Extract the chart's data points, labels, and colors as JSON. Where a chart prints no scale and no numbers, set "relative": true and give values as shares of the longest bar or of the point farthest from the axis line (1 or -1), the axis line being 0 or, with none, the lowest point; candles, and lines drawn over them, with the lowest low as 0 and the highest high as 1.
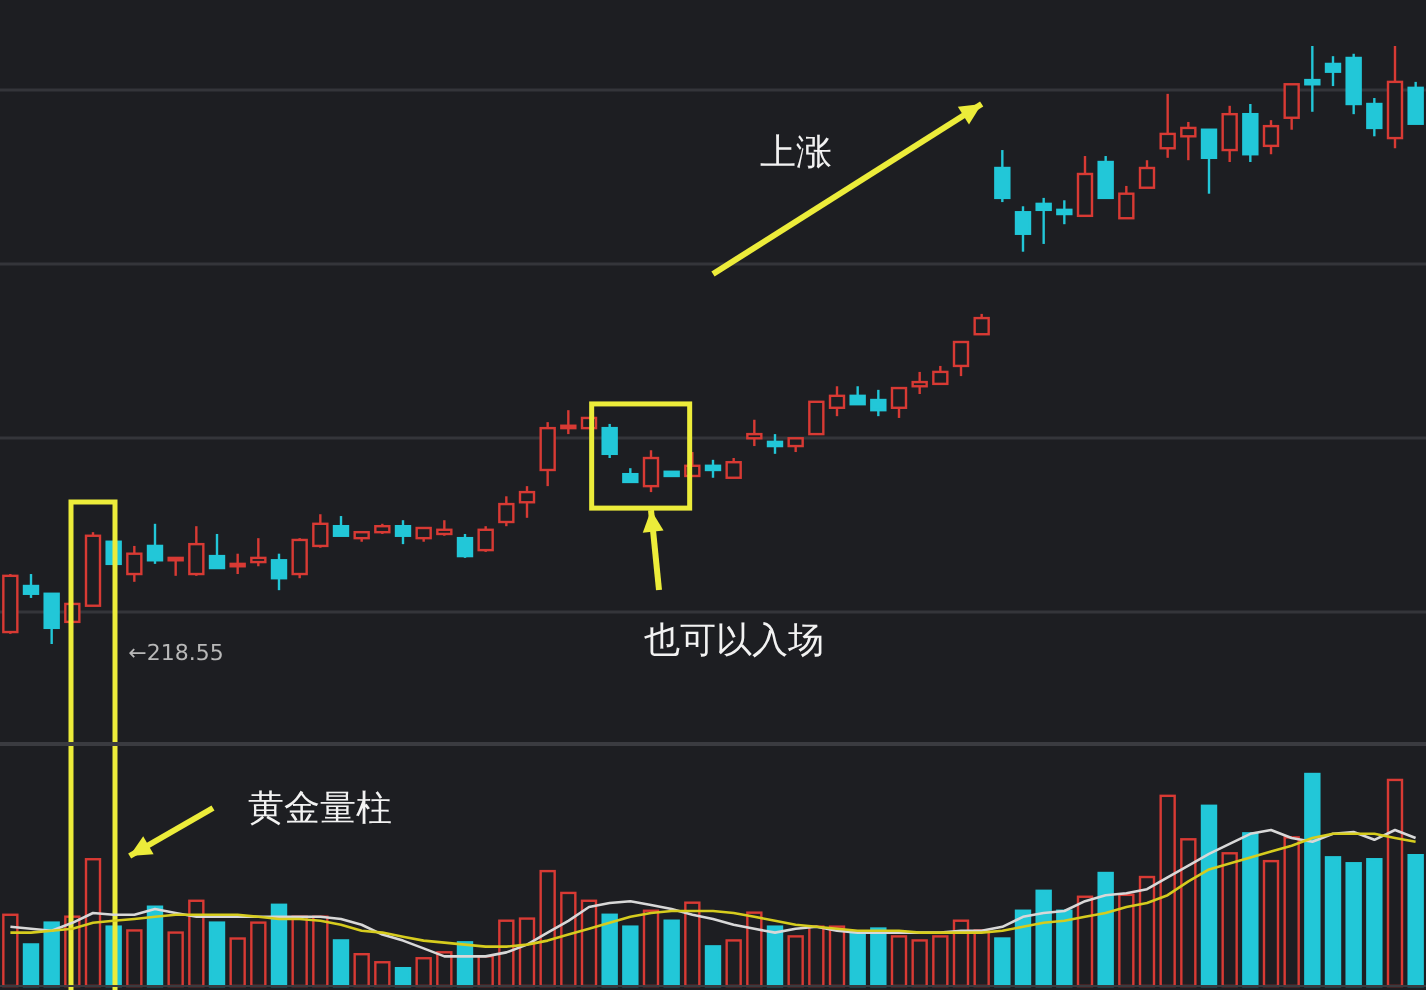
{
  "chart_data": [
    {
      "type": "candlestick",
      "relative": true,
      "grid": true,
      "categories": [
        null,
        null,
        null,
        null,
        null,
        null,
        null,
        null,
        null,
        null,
        null,
        null,
        null,
        null,
        null,
        null,
        null,
        null,
        null,
        null,
        null,
        null,
        null,
        null,
        null,
        null,
        null,
        null,
        null,
        null,
        null,
        null,
        null,
        null,
        null,
        null,
        null,
        null,
        null,
        null,
        null,
        null,
        null,
        null,
        null,
        null,
        null,
        null,
        null,
        null,
        null,
        null,
        null,
        null,
        null,
        null,
        null,
        null,
        null,
        null,
        null,
        null,
        null,
        null,
        null,
        null,
        null,
        null,
        null
      ],
      "ohlc": [
        [
          0.02,
          0.117,
          0.017,
          0.114
        ],
        [
          0.097,
          0.117,
          0.077,
          0.084
        ],
        [
          0.084,
          0.084,
          0,
          0.027
        ],
        [
          0.037,
          0.067,
          0.037,
          0.067
        ],
        [
          0.064,
          0.187,
          0.064,
          0.181
        ],
        [
          0.171,
          0.171,
          0.134,
          0.134
        ],
        [
          0.117,
          0.164,
          0.104,
          0.151
        ],
        [
          0.164,
          0.201,
          0.134,
          0.14
        ],
        [
          0.14,
          0.144,
          0.114,
          0.144
        ],
        [
          0.117,
          0.197,
          0.114,
          0.167
        ],
        [
          0.147,
          0.184,
          0.127,
          0.127
        ],
        [
          0.13,
          0.151,
          0.117,
          0.134
        ],
        [
          0.137,
          0.177,
          0.13,
          0.144
        ],
        [
          0.14,
          0.151,
          0.09,
          0.11
        ],
        [
          0.117,
          0.177,
          0.11,
          0.174
        ],
        [
          0.164,
          0.217,
          0.161,
          0.201
        ],
        [
          0.197,
          0.214,
          0.181,
          0.181
        ],
        [
          0.177,
          0.187,
          0.171,
          0.187
        ],
        [
          0.187,
          0.201,
          0.184,
          0.197
        ],
        [
          0.197,
          0.207,
          0.167,
          0.181
        ],
        [
          0.177,
          0.194,
          0.171,
          0.194
        ],
        [
          0.184,
          0.207,
          0.181,
          0.191
        ],
        [
          0.177,
          0.184,
          0.144,
          0.147
        ],
        [
          0.157,
          0.197,
          0.154,
          0.191
        ],
        [
          0.204,
          0.247,
          0.197,
          0.234
        ],
        [
          0.237,
          0.264,
          0.211,
          0.254
        ],
        [
          0.291,
          0.371,
          0.264,
          0.361
        ],
        [
          0.361,
          0.391,
          0.351,
          0.365
        ],
        [
          0.361,
          0.378,
          0.361,
          0.378
        ],
        [
          0.361,
          0.368,
          0.311,
          0.318
        ],
        [
          0.284,
          0.294,
          0.271,
          0.271
        ],
        [
          0.264,
          0.324,
          0.254,
          0.311
        ],
        [
          0.288,
          0.288,
          0.281,
          0.281
        ],
        [
          0.281,
          0.321,
          0.281,
          0.298
        ],
        [
          0.298,
          0.308,
          0.278,
          0.291
        ],
        [
          0.278,
          0.311,
          0.278,
          0.304
        ],
        [
          0.344,
          0.375,
          0.331,
          0.351
        ],
        [
          0.338,
          0.351,
          0.318,
          0.331
        ],
        [
          0.331,
          0.344,
          0.321,
          0.344
        ],
        [
          0.351,
          0.405,
          0.351,
          0.405
        ],
        [
          0.395,
          0.431,
          0.381,
          0.415
        ],
        [
          0.415,
          0.431,
          0.401,
          0.401
        ],
        [
          0.408,
          0.425,
          0.381,
          0.391
        ],
        [
          0.395,
          0.428,
          0.378,
          0.428
        ],
        [
          0.431,
          0.455,
          0.418,
          0.438
        ],
        [
          0.435,
          0.465,
          0.435,
          0.455
        ],
        [
          0.465,
          0.505,
          0.448,
          0.505
        ],
        [
          0.518,
          0.552,
          0.518,
          0.545
        ],
        [
          0.796,
          0.826,
          0.739,
          0.746
        ],
        [
          0.722,
          0.732,
          0.656,
          0.686
        ],
        [
          0.736,
          0.746,
          0.669,
          0.726
        ],
        [
          0.726,
          0.742,
          0.702,
          0.719
        ],
        [
          0.716,
          0.816,
          0.716,
          0.786
        ],
        [
          0.806,
          0.816,
          0.746,
          0.746
        ],
        [
          0.712,
          0.766,
          0.712,
          0.753
        ],
        [
          0.763,
          0.809,
          0.763,
          0.796
        ],
        [
          0.829,
          0.92,
          0.813,
          0.853
        ],
        [
          0.849,
          0.873,
          0.809,
          0.863
        ],
        [
          0.86,
          0.86,
          0.753,
          0.813
        ],
        [
          0.826,
          0.9,
          0.806,
          0.886
        ],
        [
          0.886,
          0.903,
          0.806,
          0.819
        ],
        [
          0.833,
          0.876,
          0.819,
          0.866
        ],
        [
          0.88,
          0.936,
          0.86,
          0.936
        ],
        [
          0.943,
          1,
          0.89,
          0.936
        ],
        [
          0.97,
          0.983,
          0.933,
          0.957
        ],
        [
          0.98,
          0.987,
          0.886,
          0.903
        ],
        [
          0.903,
          0.913,
          0.849,
          0.863
        ],
        [
          0.846,
          1,
          0.829,
          0.94
        ],
        [
          0.93,
          0.94,
          0.87,
          0.87
        ]
      ],
      "colors": [
        "#d83a34",
        "#22c7d8",
        "#22c7d8",
        "#d83a34",
        "#d83a34",
        "#22c7d8",
        "#d83a34",
        "#22c7d8",
        "#d83a34",
        "#d83a34",
        "#22c7d8",
        "#d83a34",
        "#d83a34",
        "#22c7d8",
        "#d83a34",
        "#d83a34",
        "#22c7d8",
        "#d83a34",
        "#d83a34",
        "#22c7d8",
        "#d83a34",
        "#d83a34",
        "#22c7d8",
        "#d83a34",
        "#d83a34",
        "#d83a34",
        "#d83a34",
        "#d83a34",
        "#d83a34",
        "#22c7d8",
        "#22c7d8",
        "#d83a34",
        "#22c7d8",
        "#d83a34",
        "#22c7d8",
        "#d83a34",
        "#d83a34",
        "#22c7d8",
        "#d83a34",
        "#d83a34",
        "#d83a34",
        "#22c7d8",
        "#22c7d8",
        "#d83a34",
        "#d83a34",
        "#d83a34",
        "#d83a34",
        "#d83a34",
        "#22c7d8",
        "#22c7d8",
        "#22c7d8",
        "#22c7d8",
        "#d83a34",
        "#22c7d8",
        "#d83a34",
        "#d83a34",
        "#d83a34",
        "#d83a34",
        "#22c7d8",
        "#d83a34",
        "#22c7d8",
        "#d83a34",
        "#d83a34",
        "#22c7d8",
        "#22c7d8",
        "#22c7d8",
        "#22c7d8",
        "#d83a34",
        "#22c7d8"
      ],
      "annotations": [
        "上涨",
        "也可以入场",
        "←218.55"
      ]
    },
    {
      "type": "bar",
      "relative": true,
      "categories": [
        null,
        null,
        null,
        null,
        null,
        null,
        null,
        null,
        null,
        null,
        null,
        null,
        null,
        null,
        null,
        null,
        null,
        null,
        null,
        null,
        null,
        null,
        null,
        null,
        null,
        null,
        null,
        null,
        null,
        null,
        null,
        null,
        null,
        null,
        null,
        null,
        null,
        null,
        null,
        null,
        null,
        null,
        null,
        null,
        null,
        null,
        null,
        null,
        null,
        null,
        null,
        null,
        null,
        null,
        null,
        null,
        null,
        null,
        null,
        null,
        null,
        null,
        null,
        null,
        null,
        null,
        null,
        null,
        null
      ],
      "series": [
        {
          "type": "bar",
          "colors": [
            "#d83a34",
            "#22c7d8",
            "#22c7d8",
            "#d83a34",
            "#d83a34",
            "#22c7d8",
            "#d83a34",
            "#22c7d8",
            "#d83a34",
            "#d83a34",
            "#22c7d8",
            "#d83a34",
            "#d83a34",
            "#22c7d8",
            "#d83a34",
            "#d83a34",
            "#22c7d8",
            "#d83a34",
            "#d83a34",
            "#22c7d8",
            "#d83a34",
            "#d83a34",
            "#22c7d8",
            "#d83a34",
            "#d83a34",
            "#d83a34",
            "#d83a34",
            "#d83a34",
            "#d83a34",
            "#22c7d8",
            "#22c7d8",
            "#d83a34",
            "#22c7d8",
            "#d83a34",
            "#22c7d8",
            "#d83a34",
            "#d83a34",
            "#22c7d8",
            "#d83a34",
            "#d83a34",
            "#d83a34",
            "#22c7d8",
            "#22c7d8",
            "#d83a34",
            "#d83a34",
            "#d83a34",
            "#d83a34",
            "#d83a34",
            "#22c7d8",
            "#22c7d8",
            "#22c7d8",
            "#22c7d8",
            "#d83a34",
            "#22c7d8",
            "#d83a34",
            "#d83a34",
            "#d83a34",
            "#d83a34",
            "#22c7d8",
            "#d83a34",
            "#22c7d8",
            "#d83a34",
            "#d83a34",
            "#22c7d8",
            "#22c7d8",
            "#22c7d8",
            "#22c7d8",
            "#d83a34",
            "#22c7d8"
          ],
          "values": [
            0.336,
            0.196,
            0.299,
            0.327,
            0.598,
            0.28,
            0.262,
            0.374,
            0.252,
            0.402,
            0.299,
            0.224,
            0.299,
            0.383,
            0.327,
            0.327,
            0.215,
            0.15,
            0.112,
            0.084,
            0.131,
            0.159,
            0.206,
            0.14,
            0.308,
            0.318,
            0.542,
            0.439,
            0.402,
            0.336,
            0.28,
            0.355,
            0.308,
            0.393,
            0.187,
            0.215,
            0.346,
            0.28,
            0.234,
            0.28,
            0.28,
            0.252,
            0.271,
            0.234,
            0.215,
            0.234,
            0.308,
            0.262,
            0.224,
            0.355,
            0.449,
            0.355,
            0.421,
            0.533,
            0.43,
            0.514,
            0.897,
            0.692,
            0.85,
            0.626,
            0.72,
            0.589,
            0.701,
            1,
            0.607,
            0.579,
            0.598,
            0.972,
            0.617
          ]
        }
      ],
      "annotations": [
        "黄金量柱"
      ]
    },
    {
      "type": "line",
      "relative": true,
      "categories": [
        null,
        null,
        null,
        null,
        null,
        null,
        null,
        null,
        null,
        null,
        null,
        null,
        null,
        null,
        null,
        null,
        null,
        null,
        null,
        null,
        null,
        null,
        null,
        null,
        null,
        null,
        null,
        null,
        null,
        null,
        null,
        null,
        null,
        null,
        null,
        null,
        null,
        null,
        null,
        null,
        null,
        null,
        null,
        null,
        null,
        null,
        null,
        null,
        null,
        null,
        null,
        null,
        null,
        null,
        null,
        null,
        null,
        null,
        null,
        null,
        null,
        null,
        null,
        null,
        null,
        null,
        null,
        null,
        null
      ],
      "series": [
        {
          "color": "#d8d8d8",
          "values": [
            0.38,
            0.367,
            0.354,
            0.405,
            0.468,
            0.456,
            0.456,
            0.494,
            0.468,
            0.443,
            0.443,
            0.443,
            0.443,
            0.443,
            0.443,
            0.443,
            0.43,
            0.392,
            0.329,
            0.291,
            0.241,
            0.19,
            0.19,
            0.19,
            0.215,
            0.266,
            0.342,
            0.418,
            0.506,
            0.532,
            0.544,
            0.519,
            0.494,
            0.456,
            0.43,
            0.392,
            0.367,
            0.342,
            0.367,
            0.38,
            0.354,
            0.342,
            0.342,
            0.342,
            0.342,
            0.342,
            0.354,
            0.354,
            0.38,
            0.443,
            0.468,
            0.481,
            0.544,
            0.582,
            0.595,
            0.62,
            0.696,
            0.772,
            0.848,
            0.911,
            0.975,
            1,
            0.949,
            0.924,
            0.975,
            0.987,
            0.937,
            1,
            0.949
          ]
        },
        {
          "color": "#d6cc1e",
          "values": [
            0.342,
            0.342,
            0.354,
            0.367,
            0.405,
            0.418,
            0.43,
            0.443,
            0.456,
            0.456,
            0.456,
            0.456,
            0.443,
            0.43,
            0.43,
            0.418,
            0.392,
            0.354,
            0.342,
            0.316,
            0.291,
            0.278,
            0.266,
            0.253,
            0.253,
            0.266,
            0.291,
            0.329,
            0.367,
            0.405,
            0.443,
            0.468,
            0.481,
            0.481,
            0.481,
            0.468,
            0.443,
            0.418,
            0.392,
            0.38,
            0.367,
            0.354,
            0.354,
            0.354,
            0.342,
            0.342,
            0.342,
            0.342,
            0.354,
            0.38,
            0.405,
            0.418,
            0.443,
            0.468,
            0.506,
            0.532,
            0.582,
            0.671,
            0.747,
            0.785,
            0.823,
            0.861,
            0.899,
            0.949,
            0.975,
            0.975,
            0.975,
            0.949,
            0.924
          ]
        }
      ]
    }
  ]
}
